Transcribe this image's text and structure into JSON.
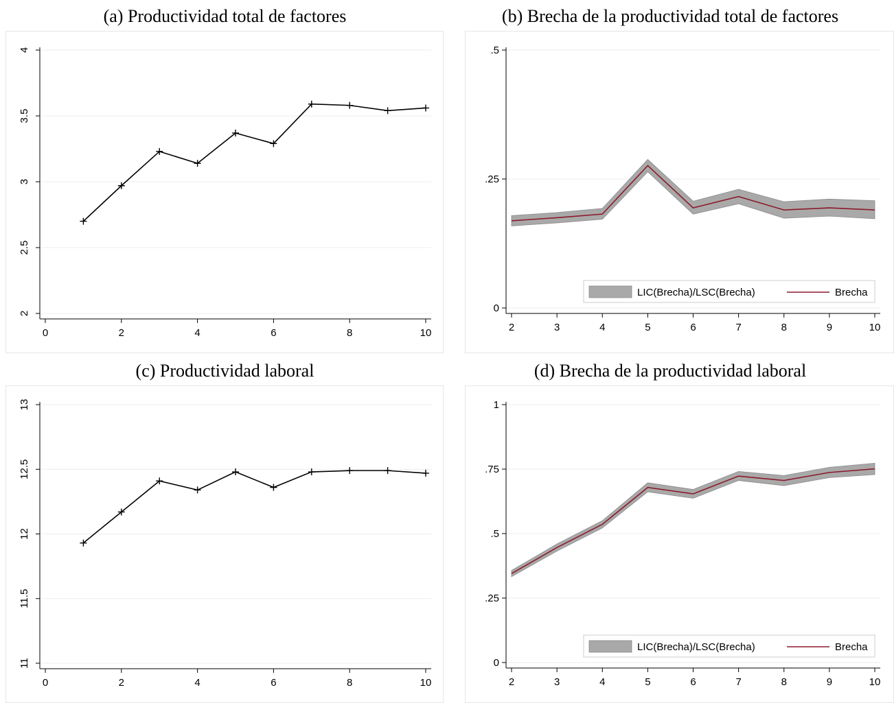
{
  "chart_data": [
    {
      "id": "a",
      "type": "line",
      "title": "(a) Productividad total de factores",
      "xlabel": "",
      "ylabel": "",
      "xlim": [
        0,
        10
      ],
      "ylim": [
        2,
        4
      ],
      "xticks": [
        0,
        2,
        4,
        6,
        8,
        10
      ],
      "xtick_labels": [
        "0",
        "2",
        "4",
        "6",
        "8",
        "10"
      ],
      "yticks": [
        2,
        2.5,
        3,
        3.5,
        4
      ],
      "ytick_labels": [
        "2",
        "2.5",
        "3",
        "3.5",
        "4"
      ],
      "ytick_rotated": true,
      "grid": true,
      "x": [
        1,
        2,
        3,
        4,
        5,
        6,
        7,
        8,
        9,
        10
      ],
      "series": [
        {
          "values": [
            2.7,
            2.97,
            3.23,
            3.14,
            3.37,
            3.29,
            3.59,
            3.58,
            3.54,
            3.56
          ],
          "color": "#000000",
          "marker": "plus"
        }
      ]
    },
    {
      "id": "b",
      "type": "area",
      "title": "(b) Brecha de la productividad total de factores",
      "xlabel": "",
      "ylabel": "",
      "xlim": [
        2,
        10
      ],
      "ylim": [
        0,
        0.5
      ],
      "xticks": [
        2,
        3,
        4,
        5,
        6,
        7,
        8,
        9,
        10
      ],
      "xtick_labels": [
        "2",
        "3",
        "4",
        "5",
        "6",
        "7",
        "8",
        "9",
        "10"
      ],
      "yticks": [
        0,
        0.25,
        0.5
      ],
      "ytick_labels": [
        "0",
        ".25",
        ".5"
      ],
      "ytick_rotated": false,
      "grid": true,
      "legend_position": "bottom-right",
      "x": [
        2,
        3,
        4,
        5,
        6,
        7,
        8,
        9,
        10
      ],
      "band": {
        "name": "LIC(Brecha)/LSC(Brecha)",
        "lower": [
          0.159,
          0.165,
          0.172,
          0.264,
          0.182,
          0.202,
          0.174,
          0.178,
          0.173
        ],
        "upper": [
          0.179,
          0.185,
          0.193,
          0.288,
          0.207,
          0.23,
          0.206,
          0.211,
          0.208
        ],
        "color": "#a9a9a9"
      },
      "series": [
        {
          "name": "Brecha",
          "values": [
            0.169,
            0.175,
            0.182,
            0.276,
            0.194,
            0.216,
            0.19,
            0.194,
            0.19
          ],
          "color": "#8b1a2b"
        }
      ]
    },
    {
      "id": "c",
      "type": "line",
      "title": "(c) Productividad laboral",
      "xlabel": "",
      "ylabel": "",
      "xlim": [
        0,
        10
      ],
      "ylim": [
        11,
        13
      ],
      "xticks": [
        0,
        2,
        4,
        6,
        8,
        10
      ],
      "xtick_labels": [
        "0",
        "2",
        "4",
        "6",
        "8",
        "10"
      ],
      "yticks": [
        11,
        11.5,
        12,
        12.5,
        13
      ],
      "ytick_labels": [
        "11",
        "11.5",
        "12",
        "12.5",
        "13"
      ],
      "ytick_rotated": true,
      "grid": true,
      "x": [
        1,
        2,
        3,
        4,
        5,
        6,
        7,
        8,
        9,
        10
      ],
      "series": [
        {
          "values": [
            11.93,
            12.17,
            12.41,
            12.34,
            12.48,
            12.36,
            12.48,
            12.49,
            12.49,
            12.47
          ],
          "color": "#000000",
          "marker": "plus"
        }
      ]
    },
    {
      "id": "d",
      "type": "area",
      "title": "(d) Brecha de la productividad laboral",
      "xlabel": "",
      "ylabel": "",
      "xlim": [
        2,
        10
      ],
      "ylim": [
        0,
        1
      ],
      "xticks": [
        2,
        3,
        4,
        5,
        6,
        7,
        8,
        9,
        10
      ],
      "xtick_labels": [
        "2",
        "3",
        "4",
        "5",
        "6",
        "7",
        "8",
        "9",
        "10"
      ],
      "yticks": [
        0,
        0.25,
        0.5,
        0.75,
        1
      ],
      "ytick_labels": [
        "0",
        ".25",
        ".5",
        ".75",
        "1"
      ],
      "ytick_rotated": false,
      "grid": true,
      "legend_position": "bottom-right",
      "x": [
        2,
        3,
        4,
        5,
        6,
        7,
        8,
        9,
        10
      ],
      "band": {
        "name": "LIC(Brecha)/LSC(Brecha)",
        "lower": [
          0.333,
          0.432,
          0.522,
          0.662,
          0.637,
          0.706,
          0.686,
          0.717,
          0.729
        ],
        "upper": [
          0.357,
          0.46,
          0.55,
          0.697,
          0.671,
          0.741,
          0.725,
          0.757,
          0.773
        ],
        "color": "#a9a9a9"
      },
      "series": [
        {
          "name": "Brecha",
          "values": [
            0.345,
            0.446,
            0.536,
            0.679,
            0.654,
            0.723,
            0.706,
            0.737,
            0.751
          ],
          "color": "#8b1a2b"
        }
      ]
    }
  ]
}
